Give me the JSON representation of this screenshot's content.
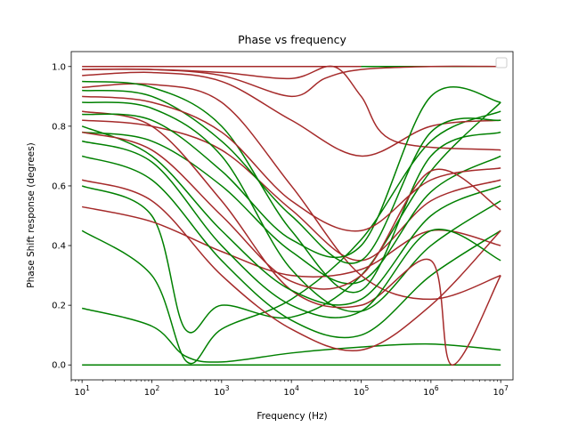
{
  "chart_data": {
    "type": "line",
    "title": "Phase vs frequency",
    "xlabel": "Frequency (Hz)",
    "ylabel": "Phase Shift response (degrees)",
    "x_scale": "log",
    "xlim": [
      7,
      15000000
    ],
    "ylim": [
      -0.05,
      1.05
    ],
    "x_ticks": [
      10,
      100,
      1000,
      10000,
      100000,
      1000000,
      10000000
    ],
    "x_tick_labels": [
      [
        "10",
        "1"
      ],
      [
        "10",
        "2"
      ],
      [
        "10",
        "3"
      ],
      [
        "10",
        "4"
      ],
      [
        "10",
        "5"
      ],
      [
        "10",
        "6"
      ],
      [
        "10",
        "7"
      ]
    ],
    "y_ticks": [
      0.0,
      0.2,
      0.4,
      0.6,
      0.8,
      1.0
    ],
    "y_tick_labels": [
      "0.0",
      "0.2",
      "0.4",
      "0.6",
      "0.8",
      "1.0"
    ],
    "grid": false,
    "legend": {
      "placement": "top-right",
      "entries": []
    },
    "colors": {
      "series_a": "#a52a2a",
      "series_b": "#008000"
    },
    "series": [
      {
        "color": "#008000",
        "x": [
          10,
          10000000
        ],
        "y": [
          0.0,
          0.0
        ]
      },
      {
        "color": "#a52a2a",
        "x": [
          10,
          10000000
        ],
        "y": [
          1.0,
          1.0
        ]
      },
      {
        "color": "#008000",
        "x": [
          100000,
          10000000
        ],
        "y": [
          1.0,
          1.0
        ]
      },
      {
        "color": "#008000",
        "x": [
          10,
          100,
          300,
          1000,
          10000,
          100000,
          1000000,
          10000000
        ],
        "y": [
          0.19,
          0.13,
          0.03,
          0.01,
          0.04,
          0.06,
          0.07,
          0.05
        ]
      },
      {
        "color": "#008000",
        "x": [
          10,
          100,
          320,
          1000,
          10000,
          100000,
          1000000,
          10000000
        ],
        "y": [
          0.45,
          0.3,
          0.01,
          0.12,
          0.22,
          0.42,
          0.75,
          0.85
        ]
      },
      {
        "color": "#008000",
        "x": [
          10,
          100,
          300,
          1000,
          10000,
          100000,
          1000000,
          10000000
        ],
        "y": [
          0.6,
          0.5,
          0.12,
          0.2,
          0.16,
          0.3,
          0.65,
          0.88
        ]
      },
      {
        "color": "#a52a2a",
        "x": [
          10,
          100,
          1000,
          10000,
          100000,
          1000000,
          10000000
        ],
        "y": [
          0.53,
          0.48,
          0.38,
          0.3,
          0.32,
          0.45,
          0.4
        ]
      },
      {
        "color": "#a52a2a",
        "x": [
          10,
          100,
          1000,
          10000,
          100000,
          1000000,
          10000000
        ],
        "y": [
          0.82,
          0.8,
          0.72,
          0.52,
          0.35,
          0.55,
          0.62
        ]
      },
      {
        "color": "#008000",
        "x": [
          10,
          100,
          1000,
          10000,
          100000,
          1000000,
          10000000
        ],
        "y": [
          0.78,
          0.75,
          0.6,
          0.38,
          0.28,
          0.58,
          0.7
        ]
      },
      {
        "color": "#a52a2a",
        "x": [
          10,
          100,
          1000,
          10000,
          100000,
          1000000,
          10000000
        ],
        "y": [
          0.97,
          0.98,
          0.95,
          0.82,
          0.7,
          0.8,
          0.82
        ]
      },
      {
        "color": "#008000",
        "x": [
          10,
          100,
          1000,
          10000,
          100000,
          1000000,
          10000000
        ],
        "y": [
          0.88,
          0.86,
          0.7,
          0.32,
          0.18,
          0.4,
          0.55
        ]
      },
      {
        "color": "#a52a2a",
        "x": [
          10,
          100,
          1000,
          10000,
          100000,
          1000000,
          10000000
        ],
        "y": [
          0.93,
          0.94,
          0.88,
          0.6,
          0.3,
          0.22,
          0.3
        ]
      },
      {
        "color": "#008000",
        "x": [
          10,
          100,
          1000,
          10000,
          100000,
          1000000,
          10000000
        ],
        "y": [
          0.7,
          0.62,
          0.35,
          0.15,
          0.1,
          0.3,
          0.45
        ]
      },
      {
        "color": "#a52a2a",
        "x": [
          10,
          100,
          1000,
          10000,
          30000,
          100000,
          1000000,
          10000000
        ],
        "y": [
          0.99,
          0.99,
          0.97,
          0.9,
          0.96,
          0.99,
          1.0,
          1.0
        ]
      },
      {
        "color": "#a52a2a",
        "x": [
          10,
          100,
          1000,
          10000,
          40000,
          100000,
          300000,
          10000000
        ],
        "y": [
          0.99,
          0.99,
          0.98,
          0.96,
          1.0,
          0.9,
          0.75,
          0.72
        ]
      },
      {
        "color": "#008000",
        "x": [
          10,
          100,
          1000,
          10000,
          100000,
          1000000,
          10000000
        ],
        "y": [
          0.95,
          0.93,
          0.8,
          0.45,
          0.25,
          0.7,
          0.78
        ]
      },
      {
        "color": "#a52a2a",
        "x": [
          10,
          100,
          1000,
          10000,
          100000,
          1000000,
          2000000,
          10000000
        ],
        "y": [
          0.85,
          0.8,
          0.55,
          0.25,
          0.2,
          0.35,
          0.0,
          0.3
        ]
      },
      {
        "color": "#008000",
        "x": [
          10,
          100,
          1000,
          10000,
          100000,
          1000000,
          10000000
        ],
        "y": [
          0.8,
          0.7,
          0.45,
          0.25,
          0.22,
          0.5,
          0.6
        ]
      },
      {
        "color": "#a52a2a",
        "x": [
          10,
          100,
          1000,
          10000,
          100000,
          1000000,
          10000000
        ],
        "y": [
          0.62,
          0.55,
          0.3,
          0.12,
          0.05,
          0.2,
          0.45
        ]
      },
      {
        "color": "#008000",
        "x": [
          10,
          100,
          1000,
          10000,
          100000,
          1000000,
          10000000
        ],
        "y": [
          0.92,
          0.9,
          0.75,
          0.5,
          0.35,
          0.78,
          0.82
        ]
      },
      {
        "color": "#a52a2a",
        "x": [
          10,
          100,
          1000,
          10000,
          100000,
          1000000,
          10000000
        ],
        "y": [
          0.78,
          0.72,
          0.5,
          0.28,
          0.3,
          0.65,
          0.52
        ]
      },
      {
        "color": "#008000",
        "x": [
          10,
          100,
          1000,
          10000,
          100000,
          1000000,
          10000000
        ],
        "y": [
          0.84,
          0.82,
          0.65,
          0.42,
          0.4,
          0.9,
          0.88
        ]
      },
      {
        "color": "#a52a2a",
        "x": [
          10,
          100,
          1000,
          10000,
          100000,
          1000000,
          10000000
        ],
        "y": [
          0.9,
          0.88,
          0.78,
          0.55,
          0.45,
          0.62,
          0.66
        ]
      },
      {
        "color": "#008000",
        "x": [
          10,
          100,
          1000,
          10000,
          100000,
          1000000,
          10000000
        ],
        "y": [
          0.75,
          0.68,
          0.4,
          0.2,
          0.18,
          0.45,
          0.35
        ]
      }
    ]
  }
}
